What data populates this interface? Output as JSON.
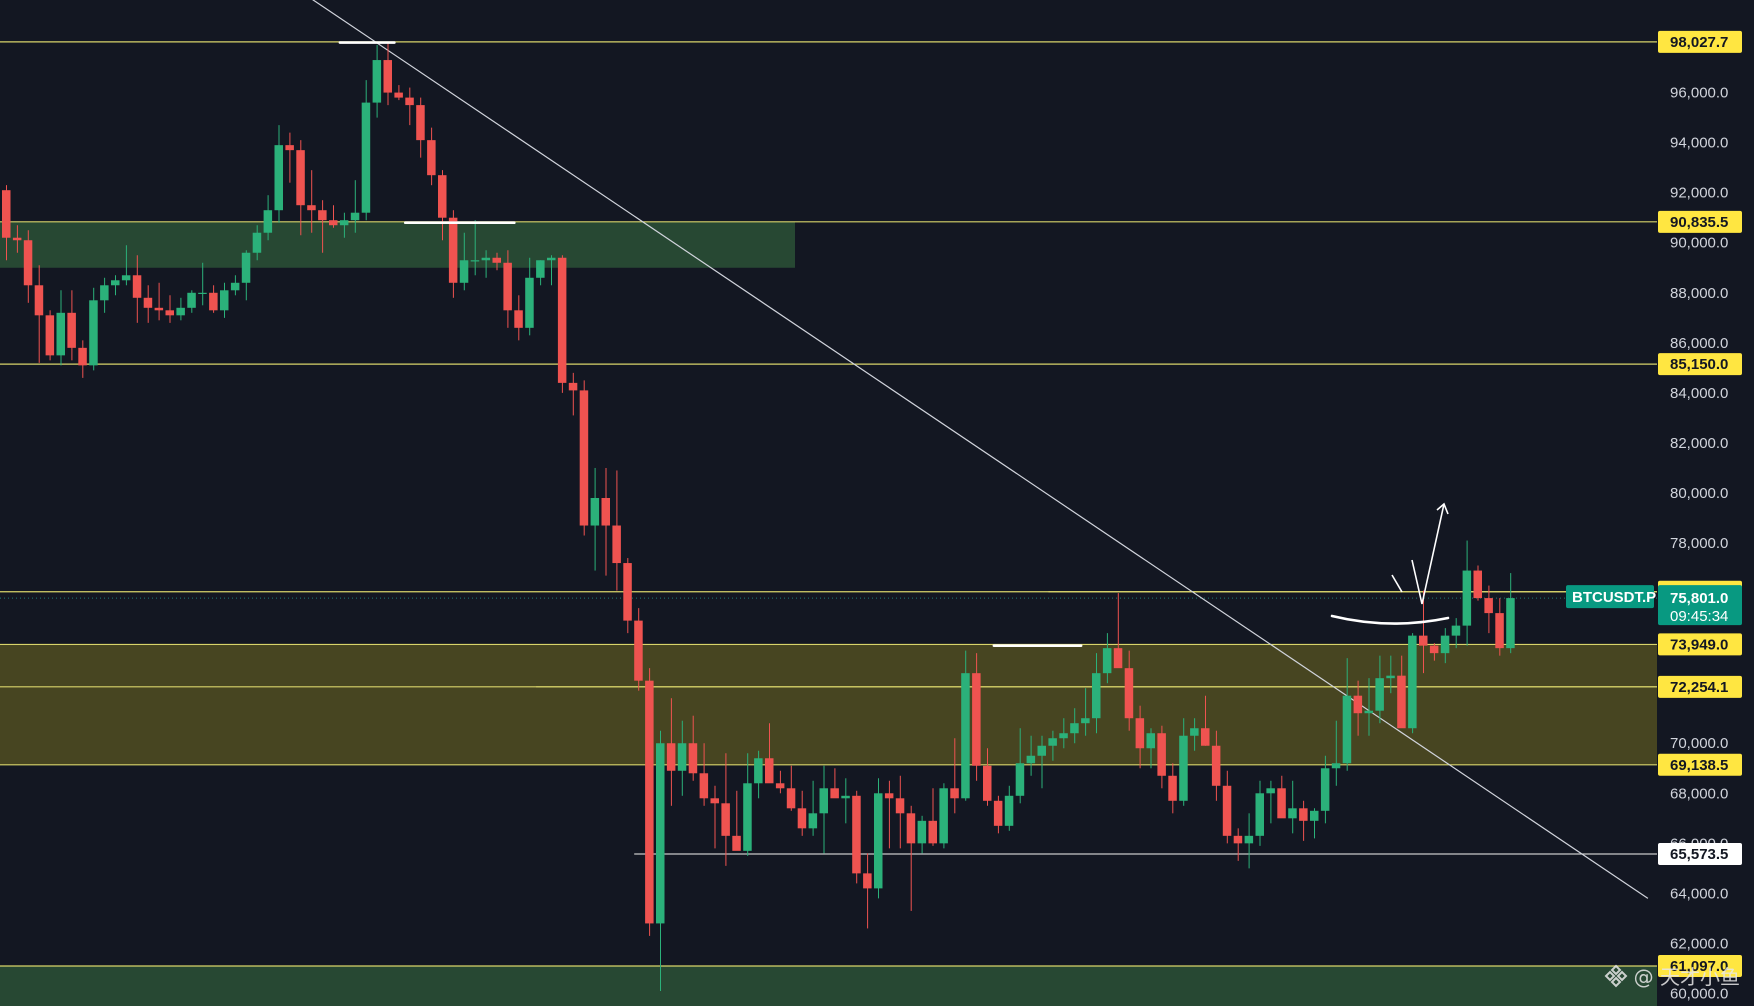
{
  "chart_data": {
    "type": "candlestick",
    "symbol": "BTCUSDT.P",
    "last_price": "75,801.0",
    "countdown": "09:45:34",
    "y_axis": {
      "ylim": [
        59500,
        99700
      ],
      "ticks": [
        "96,000.0",
        "94,000.0",
        "92,000.0",
        "90,000.0",
        "88,000.0",
        "86,000.0",
        "84,000.0",
        "82,000.0",
        "80,000.0",
        "78,000.0",
        "70,000.0",
        "68,000.0",
        "66,000.0",
        "64,000.0",
        "62,000.0",
        "60,000.0"
      ]
    },
    "levels": [
      {
        "value": 98027.7,
        "label": "98,027.7",
        "style": "yellow-tag"
      },
      {
        "value": 90835.5,
        "label": "90,835.5",
        "style": "yellow-tag"
      },
      {
        "value": 85150.0,
        "label": "85,150.0",
        "style": "yellow-tag"
      },
      {
        "value": 76053.9,
        "label": "76,053.9",
        "style": "yellow-tag"
      },
      {
        "value": 73949.0,
        "label": "73,949.0",
        "style": "yellow-tag"
      },
      {
        "value": 72254.1,
        "label": "72,254.1",
        "style": "yellow-tag"
      },
      {
        "value": 69138.5,
        "label": "69,138.5",
        "style": "yellow-tag"
      },
      {
        "value": 65573.5,
        "label": "65,573.5",
        "style": "white-tag"
      },
      {
        "value": 61097.0,
        "label": "61,097.0",
        "style": "yellow-tag"
      }
    ],
    "zones": [
      {
        "from": 89000,
        "to": 90835.5,
        "color": "#2f5a3a"
      },
      {
        "from": 69138.5,
        "to": 73949.0,
        "color": "#5a5522"
      },
      {
        "from": 59500,
        "to": 61097.0,
        "color": "#2f5a3a"
      }
    ],
    "candles": [
      [
        92100,
        92300,
        89300,
        90200
      ],
      [
        90200,
        90700,
        89600,
        90100
      ],
      [
        90100,
        90500,
        87600,
        88300
      ],
      [
        88300,
        89100,
        85200,
        87100
      ],
      [
        87100,
        87300,
        85300,
        85500
      ],
      [
        85500,
        88100,
        85100,
        87200
      ],
      [
        87200,
        88100,
        85300,
        85800
      ],
      [
        85800,
        86100,
        84600,
        85100
      ],
      [
        85100,
        88200,
        84900,
        87700
      ],
      [
        87700,
        88600,
        87200,
        88300
      ],
      [
        88300,
        88700,
        87900,
        88500
      ],
      [
        88500,
        89900,
        88300,
        88700
      ],
      [
        88700,
        89500,
        86800,
        87800
      ],
      [
        87800,
        88300,
        86800,
        87400
      ],
      [
        87400,
        88400,
        86900,
        87300
      ],
      [
        87300,
        87900,
        86800,
        87100
      ],
      [
        87100,
        87800,
        86900,
        87400
      ],
      [
        87400,
        88100,
        87200,
        88000
      ],
      [
        88000,
        89200,
        87500,
        88000
      ],
      [
        88000,
        88300,
        87200,
        87300
      ],
      [
        87300,
        88400,
        87000,
        88100
      ],
      [
        88100,
        88700,
        87900,
        88400
      ],
      [
        88400,
        89700,
        87700,
        89600
      ],
      [
        89600,
        90700,
        89300,
        90400
      ],
      [
        90400,
        91900,
        90100,
        91300
      ],
      [
        91300,
        94700,
        90800,
        93900
      ],
      [
        93900,
        94400,
        92400,
        93700
      ],
      [
        93700,
        94100,
        90300,
        91500
      ],
      [
        91500,
        92900,
        90400,
        91300
      ],
      [
        91300,
        91700,
        89600,
        90900
      ],
      [
        90900,
        91500,
        90600,
        90700
      ],
      [
        90700,
        91200,
        90200,
        90900
      ],
      [
        90900,
        92500,
        90400,
        91200
      ],
      [
        91200,
        96500,
        90900,
        95600
      ],
      [
        95600,
        97900,
        95000,
        97300
      ],
      [
        97300,
        98000,
        95500,
        96000
      ],
      [
        96000,
        96300,
        95700,
        95800
      ],
      [
        95800,
        96200,
        94700,
        95500
      ],
      [
        95500,
        95800,
        93400,
        94100
      ],
      [
        94100,
        94600,
        92300,
        92700
      ],
      [
        92700,
        92900,
        90100,
        91000
      ],
      [
        91000,
        91300,
        87800,
        88400
      ],
      [
        88400,
        90400,
        88100,
        89300
      ],
      [
        89300,
        90900,
        88700,
        89300
      ],
      [
        89300,
        89700,
        88600,
        89400
      ],
      [
        89400,
        89600,
        88900,
        89200
      ],
      [
        89200,
        89700,
        86600,
        87300
      ],
      [
        87300,
        87900,
        86100,
        86600
      ],
      [
        86600,
        89400,
        86300,
        88600
      ],
      [
        88600,
        89300,
        88300,
        89300
      ],
      [
        89300,
        89500,
        88300,
        89400
      ],
      [
        89400,
        89500,
        84000,
        84400
      ],
      [
        84400,
        84800,
        83100,
        84100
      ],
      [
        84100,
        84500,
        78300,
        78700
      ],
      [
        78700,
        81000,
        76900,
        79800
      ],
      [
        79800,
        81000,
        76700,
        78700
      ],
      [
        78700,
        80900,
        76100,
        77200
      ],
      [
        77200,
        77400,
        74400,
        74900
      ],
      [
        74900,
        75400,
        72100,
        72500
      ],
      [
        72500,
        73000,
        62300,
        62800
      ],
      [
        62800,
        70500,
        60100,
        70000
      ],
      [
        70000,
        71800,
        67500,
        68900
      ],
      [
        68900,
        70900,
        67900,
        70000
      ],
      [
        70000,
        71100,
        68500,
        68800
      ],
      [
        68800,
        70000,
        67500,
        67800
      ],
      [
        67800,
        68300,
        65800,
        67600
      ],
      [
        67600,
        69600,
        65100,
        66300
      ],
      [
        66300,
        68100,
        65900,
        65700
      ],
      [
        65700,
        69600,
        65500,
        68400
      ],
      [
        68400,
        69700,
        67800,
        69400
      ],
      [
        69400,
        70800,
        68500,
        68400
      ],
      [
        68400,
        68900,
        68000,
        68200
      ],
      [
        68200,
        69100,
        67300,
        67400
      ],
      [
        67400,
        68100,
        66300,
        66600
      ],
      [
        66600,
        68500,
        66300,
        67200
      ],
      [
        67200,
        69100,
        65600,
        68200
      ],
      [
        68200,
        69000,
        67900,
        67800
      ],
      [
        67800,
        68600,
        66800,
        67900
      ],
      [
        67900,
        68100,
        64400,
        64800
      ],
      [
        64800,
        65600,
        62600,
        64200
      ],
      [
        64200,
        68600,
        63800,
        68000
      ],
      [
        68000,
        68500,
        65800,
        67800
      ],
      [
        67800,
        68700,
        65800,
        67200
      ],
      [
        67200,
        67500,
        63300,
        66000
      ],
      [
        66000,
        67100,
        65600,
        66900
      ],
      [
        66900,
        68200,
        65900,
        66000
      ],
      [
        66000,
        68400,
        65800,
        68200
      ],
      [
        68200,
        70200,
        67200,
        67800
      ],
      [
        67800,
        73700,
        67700,
        72800
      ],
      [
        72800,
        73600,
        68500,
        69100
      ],
      [
        69100,
        69800,
        67500,
        67700
      ],
      [
        67700,
        67900,
        66400,
        66700
      ],
      [
        66700,
        68300,
        66500,
        67900
      ],
      [
        67900,
        70600,
        67600,
        69200
      ],
      [
        69200,
        70300,
        68700,
        69500
      ],
      [
        69500,
        70300,
        68200,
        69900
      ],
      [
        69900,
        70500,
        69300,
        70200
      ],
      [
        70200,
        71000,
        69800,
        70400
      ],
      [
        70400,
        71400,
        70000,
        70800
      ],
      [
        70800,
        72200,
        70300,
        71000
      ],
      [
        71000,
        73600,
        70400,
        72800
      ],
      [
        72800,
        74400,
        72400,
        73800
      ],
      [
        73800,
        76000,
        73400,
        73000
      ],
      [
        73000,
        73700,
        70500,
        71000
      ],
      [
        71000,
        71500,
        69000,
        69800
      ],
      [
        69800,
        70600,
        69000,
        70400
      ],
      [
        70400,
        70700,
        68200,
        68700
      ],
      [
        68700,
        69200,
        67200,
        67700
      ],
      [
        67700,
        71000,
        67500,
        70300
      ],
      [
        70300,
        71000,
        69700,
        70600
      ],
      [
        70600,
        71900,
        69900,
        69900
      ],
      [
        69900,
        70500,
        67700,
        68300
      ],
      [
        68300,
        68900,
        66000,
        66300
      ],
      [
        66300,
        66600,
        65300,
        66000
      ],
      [
        66000,
        67200,
        65000,
        66300
      ],
      [
        66300,
        68500,
        65900,
        68000
      ],
      [
        68000,
        68500,
        66800,
        68200
      ],
      [
        68200,
        68700,
        67200,
        67000
      ],
      [
        67000,
        68500,
        66400,
        67400
      ],
      [
        67400,
        67700,
        66100,
        66900
      ],
      [
        66900,
        67400,
        66200,
        67300
      ],
      [
        67300,
        69500,
        66800,
        69000
      ],
      [
        69000,
        70900,
        68300,
        69200
      ],
      [
        69200,
        73400,
        68900,
        71900
      ],
      [
        71900,
        72500,
        70300,
        71200
      ],
      [
        71200,
        72600,
        70300,
        71300
      ],
      [
        71300,
        73500,
        70800,
        72600
      ],
      [
        72600,
        73500,
        72000,
        72700
      ],
      [
        72700,
        73500,
        70700,
        70600
      ],
      [
        70600,
        74400,
        70400,
        74300
      ],
      [
        74300,
        76100,
        72800,
        73900
      ],
      [
        73900,
        74000,
        73300,
        73600
      ],
      [
        73600,
        74600,
        73200,
        74300
      ],
      [
        74300,
        75000,
        73800,
        74700
      ],
      [
        74700,
        78100,
        73900,
        76900
      ],
      [
        76900,
        77100,
        75700,
        75800
      ],
      [
        75800,
        76300,
        74400,
        75200
      ],
      [
        75200,
        75800,
        73500,
        73800
      ],
      [
        73800,
        76800,
        73600,
        75801
      ]
    ],
    "annotations": {
      "trendline": {
        "start": {
          "bar": 26.5,
          "price": 100300
        },
        "end": {
          "bar": 151,
          "price": 63800
        }
      },
      "range_lines": [
        {
          "from_bar": 49,
          "to_bar": 151,
          "price": 72254.1,
          "color": "#d8d46a"
        },
        {
          "from_bar": 58,
          "to_bar": 151,
          "price": 65573.5,
          "color": "#c8c8c8"
        },
        {
          "from_bar": 96,
          "to_bar": 151,
          "price": 76053.9,
          "color": "#d8d46a"
        }
      ],
      "white_marks": [
        {
          "from_bar": 31,
          "to_bar": 36,
          "price": 98000
        },
        {
          "from_bar": 37,
          "to_bar": 47,
          "price": 90800
        },
        {
          "from_bar": 91,
          "to_bar": 99,
          "price": 73900
        }
      ]
    }
  },
  "watermark": {
    "text": "@ 天才小鱼"
  },
  "colors": {
    "up": "#26a69a",
    "down": "#ef5350",
    "up_body": "#2bb17a",
    "bg": "#131722",
    "level": "#d8d46a",
    "tag_yellow": "#ffe641",
    "tag_green": "#089981"
  }
}
